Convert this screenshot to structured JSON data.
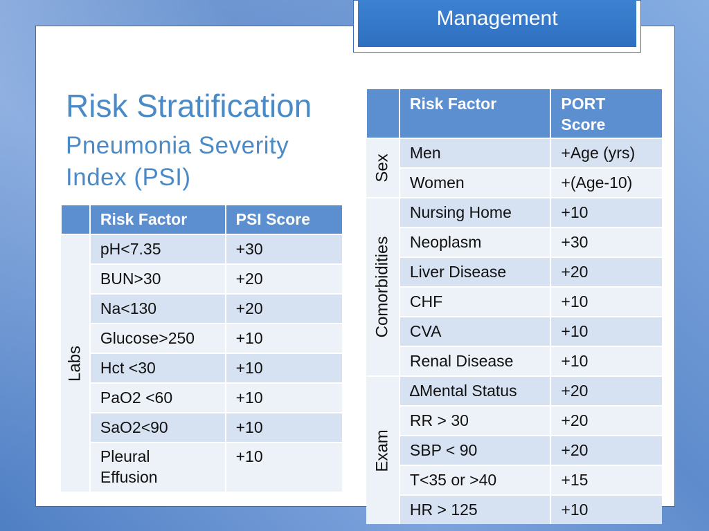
{
  "header": {
    "tab_label": "Management"
  },
  "slide": {
    "title": "Risk Stratification",
    "subtitle_line1": "Pneumonia Severity",
    "subtitle_line2": "Index (PSI)"
  },
  "psi_table": {
    "col_factor": "Risk Factor",
    "col_score": "PSI Score",
    "group_label": "Labs",
    "rows": [
      {
        "factor": "pH<7.35",
        "score": "+30"
      },
      {
        "factor": "BUN>30",
        "score": "+20"
      },
      {
        "factor": "Na<130",
        "score": "+20"
      },
      {
        "factor": "Glucose>250",
        "score": "+10"
      },
      {
        "factor": "Hct <30",
        "score": "+10"
      },
      {
        "factor": "PaO2 <60",
        "score": "+10"
      },
      {
        "factor": "SaO2<90",
        "score": "+10"
      },
      {
        "factor_line1": "Pleural",
        "factor_line2": "Effusion",
        "score": "+10"
      }
    ]
  },
  "port_table": {
    "col_factor": "Risk Factor",
    "col_score_line1": "PORT",
    "col_score_line2": "Score",
    "groups": [
      {
        "label": "Sex",
        "rows": [
          {
            "factor": "Men",
            "score": "+Age (yrs)"
          },
          {
            "factor": "Women",
            "score": "+(Age-10)"
          }
        ]
      },
      {
        "label": "Comorbidities",
        "rows": [
          {
            "factor": "Nursing Home",
            "score": "+10"
          },
          {
            "factor": "Neoplasm",
            "score": "+30"
          },
          {
            "factor": "Liver Disease",
            "score": "+20"
          },
          {
            "factor": "CHF",
            "score": "+10"
          },
          {
            "factor": "CVA",
            "score": "+10"
          },
          {
            "factor": "Renal Disease",
            "score": "+10"
          }
        ]
      },
      {
        "label": "Exam",
        "rows": [
          {
            "factor": "∆Mental Status",
            "score": "+20"
          },
          {
            "factor": "RR > 30",
            "score": "+20"
          },
          {
            "factor": "SBP < 90",
            "score": "+20"
          },
          {
            "factor": "T<35 or >40",
            "score": "+15"
          },
          {
            "factor": "HR > 125",
            "score": "+10"
          }
        ]
      }
    ]
  }
}
